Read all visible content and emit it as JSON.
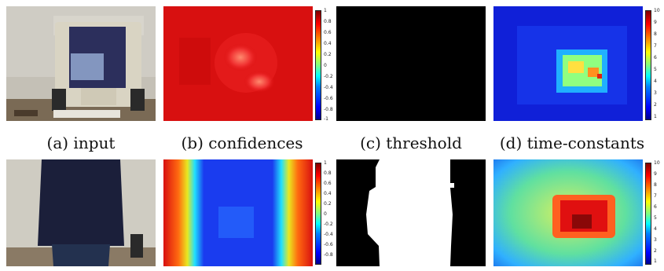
{
  "captions": {
    "input": "(a)  input",
    "confidences": "(b)  confidences",
    "threshold": "(c)  threshold",
    "time_constants": "(d)  time-constants"
  },
  "confidence_colorbar_ticks": [
    "1",
    "0.8",
    "0.6",
    "0.4",
    "0.2",
    "0",
    "-0.2",
    "-0.4",
    "-0.6",
    "-0.8",
    "-1"
  ],
  "time_constant_colorbar_ticks": [
    "10",
    "9",
    "8",
    "7",
    "6",
    "5",
    "4",
    "3",
    "2",
    "1"
  ]
}
